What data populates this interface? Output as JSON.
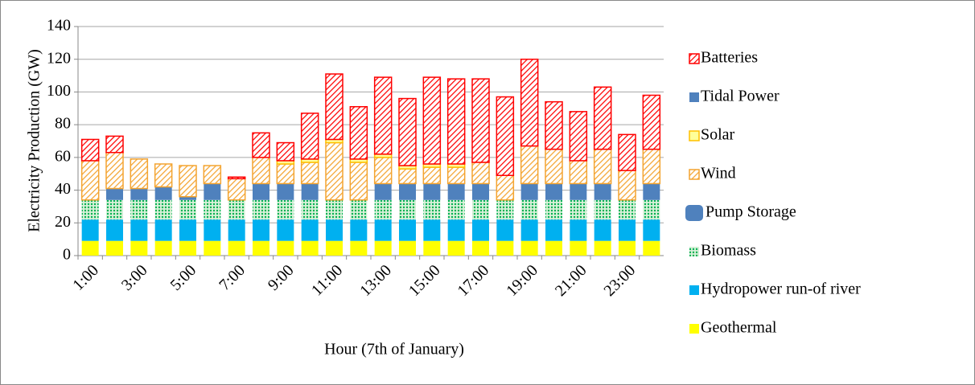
{
  "chart_data": {
    "type": "stacked_bar",
    "y_label": "Electricity Production (GW)",
    "x_label": "Hour (7th of January)",
    "categories": [
      "1:00",
      null,
      "3:00",
      null,
      "5:00",
      null,
      "7:00",
      null,
      "9:00",
      null,
      "11:00",
      null,
      "13:00",
      null,
      "15:00",
      null,
      "17:00",
      null,
      "19:00",
      null,
      "21:00",
      null,
      "23:00",
      null
    ],
    "ylim": [
      0,
      140
    ],
    "yticks": [
      0,
      20,
      40,
      60,
      80,
      100,
      120,
      140
    ],
    "grid": true,
    "legend": "right",
    "series": [
      {
        "name": "Geothermal",
        "color": "#ffff00",
        "fill": "solid",
        "values": [
          9,
          9,
          9,
          9,
          9,
          9,
          9,
          9,
          9,
          9,
          9,
          9,
          9,
          9,
          9,
          9,
          9,
          9,
          9,
          9,
          9,
          9,
          9,
          9
        ]
      },
      {
        "name": "Hydropower run-of river",
        "color": "#00b0f0",
        "fill": "solid",
        "values": [
          13,
          13,
          13,
          13,
          13,
          13,
          13,
          13,
          13,
          13,
          13,
          13,
          13,
          13,
          13,
          13,
          13,
          13,
          13,
          13,
          13,
          13,
          13,
          13
        ]
      },
      {
        "name": "Biomass",
        "color": "#00b050",
        "fill": "dots",
        "values": [
          12,
          12,
          12,
          12,
          12,
          12,
          12,
          12,
          12,
          12,
          12,
          12,
          12,
          12,
          12,
          12,
          12,
          12,
          12,
          12,
          12,
          12,
          12,
          12
        ]
      },
      {
        "name": "Pump Storage",
        "color": "#4f81bd",
        "fill": "solid",
        "values": [
          0,
          7,
          7,
          8,
          2,
          10,
          0,
          10,
          10,
          10,
          0,
          0,
          10,
          10,
          10,
          10,
          10,
          0,
          10,
          10,
          10,
          10,
          0,
          10
        ]
      },
      {
        "name": "Wind",
        "color": "#f4a430",
        "fill": "hatch",
        "values": [
          24,
          22,
          18,
          14,
          19,
          11,
          13,
          16,
          12,
          13,
          35,
          23,
          16,
          9,
          10,
          10,
          13,
          15,
          23,
          21,
          14,
          21,
          18,
          21
        ]
      },
      {
        "name": "Solar",
        "color": "#ffc000",
        "fill": "outline",
        "values": [
          0,
          0,
          0,
          0,
          0,
          0,
          0,
          0,
          2,
          2,
          2,
          2,
          2,
          2,
          2,
          2,
          0,
          0,
          0,
          0,
          0,
          0,
          0,
          0
        ]
      },
      {
        "name": "Tidal Power",
        "color": "#4f81bd",
        "fill": "solid",
        "values": [
          0,
          0,
          0,
          0,
          0,
          0,
          0,
          0,
          0,
          0,
          0,
          0,
          0,
          0,
          0,
          0,
          0,
          0,
          0,
          0,
          0,
          0,
          0,
          0
        ]
      },
      {
        "name": "Batteries",
        "color": "#ff0000",
        "fill": "hatch",
        "values": [
          13,
          10,
          0,
          0,
          0,
          0,
          1,
          15,
          11,
          28,
          40,
          32,
          47,
          41,
          53,
          52,
          51,
          48,
          53,
          29,
          30,
          38,
          22,
          33
        ]
      }
    ]
  }
}
